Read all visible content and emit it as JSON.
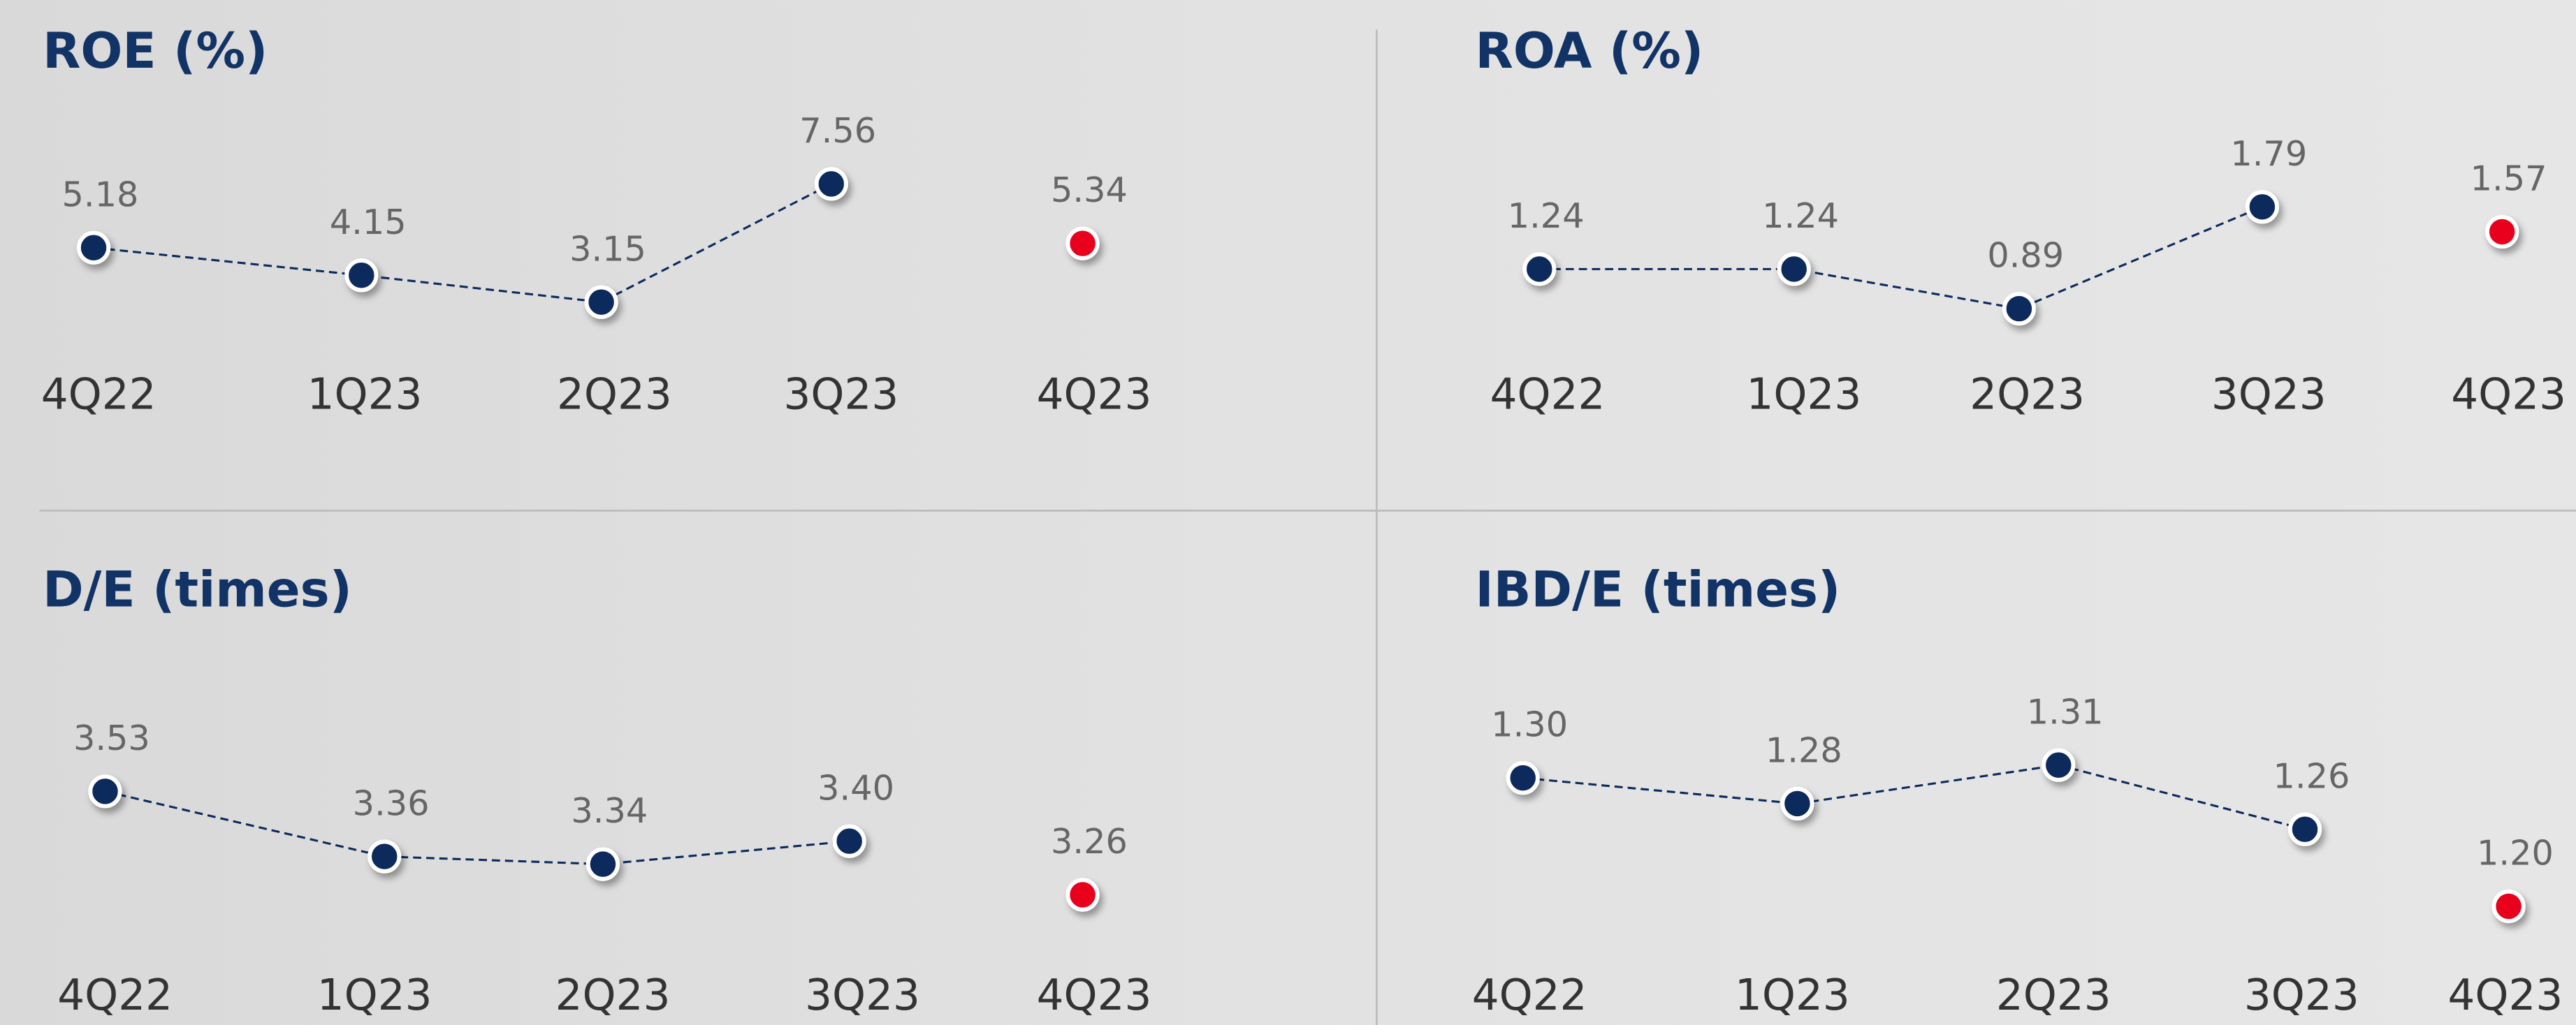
{
  "chart_data": [
    {
      "type": "line",
      "title": "ROE (%)",
      "categories": [
        "4Q22",
        "1Q23",
        "2Q23",
        "3Q23",
        "4Q23"
      ],
      "values": [
        5.18,
        4.15,
        3.15,
        7.56,
        5.34
      ],
      "line_color": "#0b2a5b",
      "marker_colors": [
        "#0b2a5b",
        "#0b2a5b",
        "#0b2a5b",
        "#0b2a5b",
        "#e8001c"
      ]
    },
    {
      "type": "line",
      "title": "ROA (%)",
      "categories": [
        "4Q22",
        "1Q23",
        "2Q23",
        "3Q23",
        "4Q23"
      ],
      "values": [
        1.24,
        1.24,
        0.89,
        1.79,
        1.57
      ],
      "line_color": "#0b2a5b",
      "marker_colors": [
        "#0b2a5b",
        "#0b2a5b",
        "#0b2a5b",
        "#0b2a5b",
        "#e8001c"
      ]
    },
    {
      "type": "line",
      "title": "D/E (times)",
      "categories": [
        "4Q22",
        "1Q23",
        "2Q23",
        "3Q23",
        "4Q23"
      ],
      "values": [
        3.53,
        3.36,
        3.34,
        3.4,
        3.26
      ],
      "value_labels": [
        "3.53",
        "3.36",
        "3.34",
        "3.40",
        "3.26"
      ],
      "line_color": "#0b2a5b",
      "marker_colors": [
        "#0b2a5b",
        "#0b2a5b",
        "#0b2a5b",
        "#0b2a5b",
        "#e8001c"
      ]
    },
    {
      "type": "line",
      "title": "IBD/E (times)",
      "categories": [
        "4Q22",
        "1Q23",
        "2Q23",
        "3Q23",
        "4Q23"
      ],
      "values": [
        1.3,
        1.28,
        1.31,
        1.26,
        1.2
      ],
      "value_labels": [
        "1.30",
        "1.28",
        "1.31",
        "1.26",
        "1.20"
      ],
      "line_color": "#0b2a5b",
      "marker_colors": [
        "#0b2a5b",
        "#0b2a5b",
        "#0b2a5b",
        "#0b2a5b",
        "#e8001c"
      ]
    }
  ]
}
